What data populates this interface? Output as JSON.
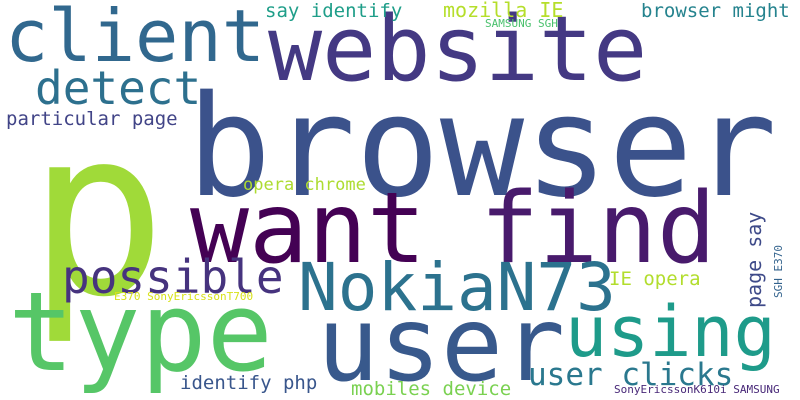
{
  "words": {
    "browser": "browser",
    "p": "p",
    "website": "website",
    "client": "client",
    "detect": "detect",
    "particular_page": "particular page",
    "say_identify": "say identify",
    "mozilla_ie": "mozilla IE",
    "samsung_sgh": "SAMSUNG SGH",
    "browser_might": "browser might",
    "opera_chrome": "opera chrome",
    "want": "want",
    "find": "find",
    "possible": "possible",
    "type": "type",
    "nokian73": "NokiaN73",
    "user": "user",
    "using": "using",
    "ie_opera": "IE opera",
    "page_say": "page say",
    "sgh_e370": "SGH E370",
    "e370_sony": "E370 SonyEricssonT700",
    "user_clicks": "user clicks",
    "identify_php": "identify php",
    "mobiles_device": "mobiles device",
    "sony_k610i": "SonyEricssonK610i SAMSUNG"
  },
  "colors": {
    "background": "#ffffff",
    "palette": [
      "#440154",
      "#481a6c",
      "#443983",
      "#3b528b",
      "#31688e",
      "#2a788e",
      "#1f9e89",
      "#56c667",
      "#a0da39",
      "#d8e219"
    ]
  }
}
